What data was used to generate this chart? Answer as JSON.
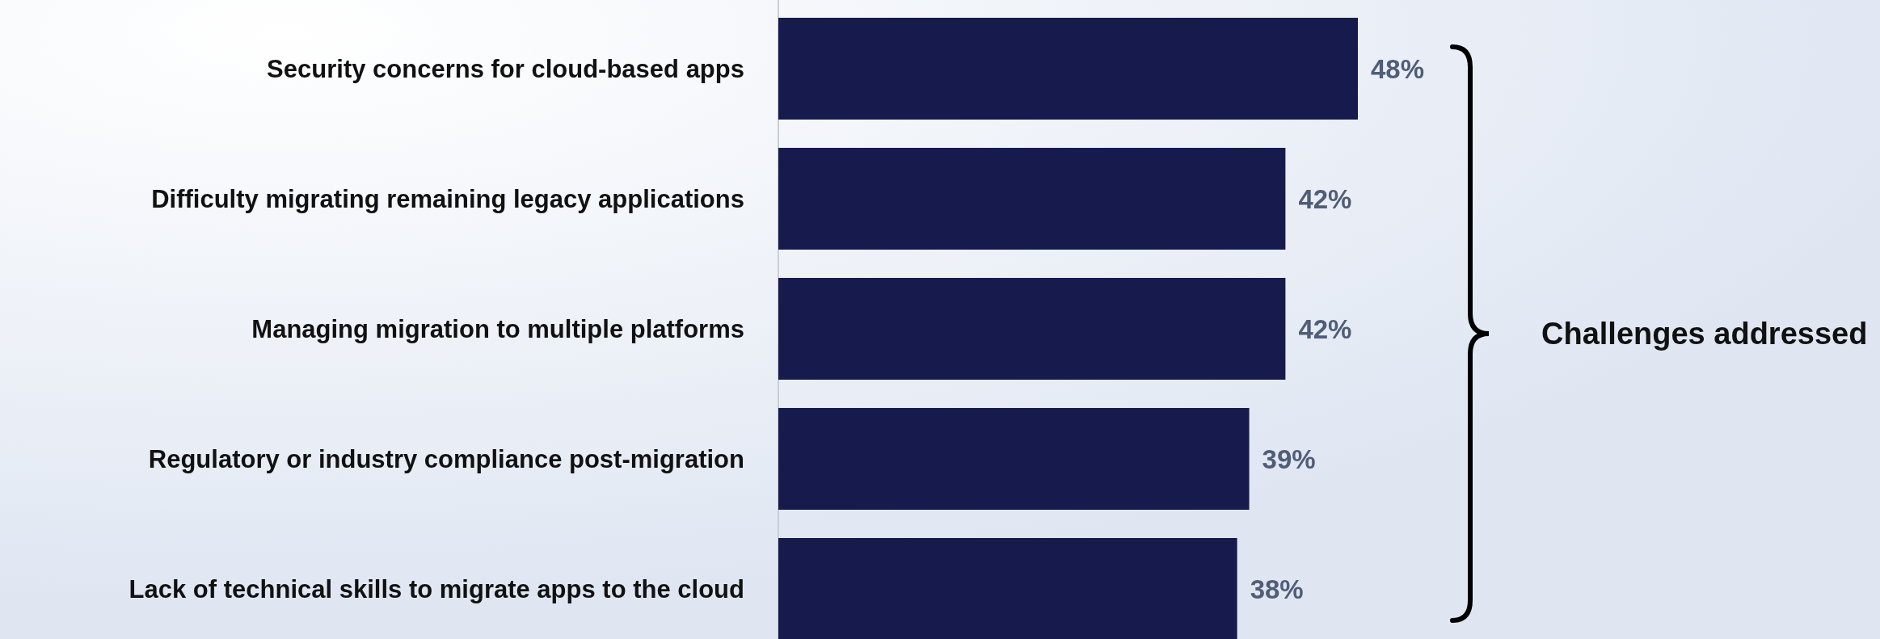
{
  "chart_data": {
    "type": "bar",
    "orientation": "horizontal",
    "categories": [
      "Security concerns for cloud-based apps",
      "Difficulty migrating remaining legacy applications",
      "Managing migration to multiple platforms",
      "Regulatory or industry compliance post-migration",
      "Lack of technical skills to migrate apps to the cloud"
    ],
    "values": [
      48,
      42,
      42,
      39,
      38
    ],
    "color": "#161a4c",
    "data_labels": true,
    "value_labels": [
      "48%",
      "42%",
      "42%",
      "39%",
      "38%"
    ],
    "annotations": [
      "Challenges addressed"
    ]
  }
}
